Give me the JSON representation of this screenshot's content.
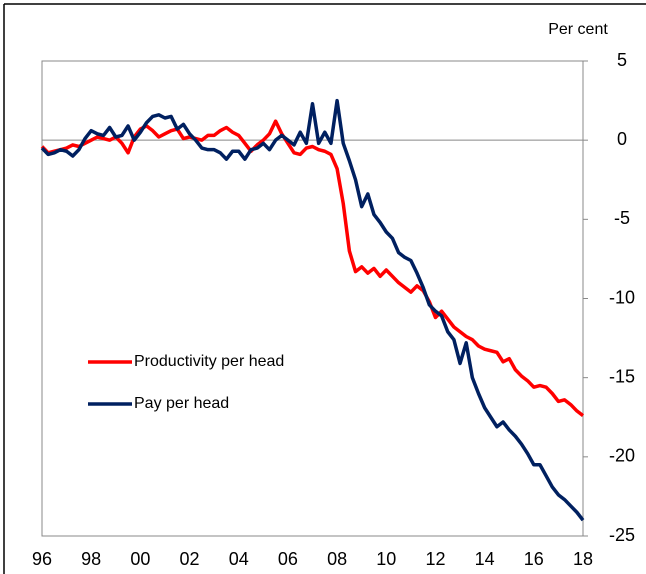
{
  "chart_data": {
    "type": "line",
    "y_axis_label": "Per cent",
    "categories": [
      "96",
      null,
      null,
      null,
      null,
      null,
      null,
      null,
      "98",
      null,
      null,
      null,
      null,
      null,
      null,
      null,
      "00",
      null,
      null,
      null,
      null,
      null,
      null,
      null,
      "02",
      null,
      null,
      null,
      null,
      null,
      null,
      null,
      "04",
      null,
      null,
      null,
      null,
      null,
      null,
      null,
      "06",
      null,
      null,
      null,
      null,
      null,
      null,
      null,
      "08",
      null,
      null,
      null,
      null,
      null,
      null,
      null,
      "10",
      null,
      null,
      null,
      null,
      null,
      null,
      null,
      "12",
      null,
      null,
      null,
      null,
      null,
      null,
      null,
      "14",
      null,
      null,
      null,
      null,
      null,
      null,
      null,
      "16",
      null,
      null,
      null,
      null,
      null,
      null,
      null,
      "18"
    ],
    "series": [
      {
        "name": "Productivity per head",
        "color": "#ff0000",
        "values": [
          -0.4,
          -0.8,
          -0.7,
          -0.6,
          -0.5,
          -0.3,
          -0.4,
          -0.2,
          0.0,
          0.2,
          0.1,
          0.0,
          0.2,
          -0.2,
          -0.8,
          0.2,
          0.7,
          0.9,
          0.6,
          0.2,
          0.4,
          0.6,
          0.7,
          0.1,
          0.2,
          0.1,
          0.0,
          0.3,
          0.3,
          0.6,
          0.8,
          0.5,
          0.3,
          -0.2,
          -0.7,
          -0.3,
          0.0,
          0.4,
          1.2,
          0.4,
          -0.2,
          -0.8,
          -0.9,
          -0.5,
          -0.4,
          -0.6,
          -0.7,
          -0.9,
          -1.8,
          -4.0,
          -7.0,
          -8.3,
          -8.0,
          -8.4,
          -8.1,
          -8.6,
          -8.2,
          -8.6,
          -9.0,
          -9.3,
          -9.6,
          -9.2,
          -9.5,
          -10.2,
          -11.2,
          -10.8,
          -11.3,
          -11.8,
          -12.1,
          -12.4,
          -12.6,
          -13.0,
          -13.2,
          -13.3,
          -13.4,
          -14.0,
          -13.8,
          -14.5,
          -14.9,
          -15.2,
          -15.6,
          -15.5,
          -15.6,
          -16.0,
          -16.5,
          -16.4,
          -16.7,
          -17.1,
          -17.4
        ]
      },
      {
        "name": "Pay per head",
        "color": "#002060",
        "values": [
          -0.5,
          -0.9,
          -0.8,
          -0.6,
          -0.7,
          -1.0,
          -0.6,
          0.1,
          0.6,
          0.4,
          0.3,
          0.8,
          0.2,
          0.3,
          0.9,
          0.0,
          0.5,
          1.1,
          1.5,
          1.6,
          1.4,
          1.5,
          0.7,
          1.0,
          0.4,
          0.0,
          -0.5,
          -0.6,
          -0.6,
          -0.8,
          -1.2,
          -0.7,
          -0.7,
          -1.2,
          -0.6,
          -0.5,
          -0.2,
          -0.6,
          0.0,
          0.3,
          0.0,
          -0.3,
          0.5,
          -0.2,
          2.3,
          -0.2,
          0.5,
          -0.2,
          2.5,
          -0.2,
          -1.3,
          -2.5,
          -4.2,
          -3.4,
          -4.7,
          -5.2,
          -5.8,
          -6.2,
          -7.1,
          -7.4,
          -7.6,
          -8.4,
          -9.3,
          -10.4,
          -10.8,
          -11.1,
          -12.1,
          -12.6,
          -14.1,
          -12.8,
          -15.0,
          -16.0,
          -16.9,
          -17.5,
          -18.1,
          -17.8,
          -18.3,
          -18.7,
          -19.2,
          -19.8,
          -20.5,
          -20.5,
          -21.2,
          -21.9,
          -22.4,
          -22.7,
          -23.1,
          -23.5,
          -24.0
        ]
      }
    ],
    "ylim": [
      -25,
      5
    ],
    "yticks": [
      5,
      0,
      -5,
      -10,
      -15,
      -20,
      -25
    ]
  }
}
